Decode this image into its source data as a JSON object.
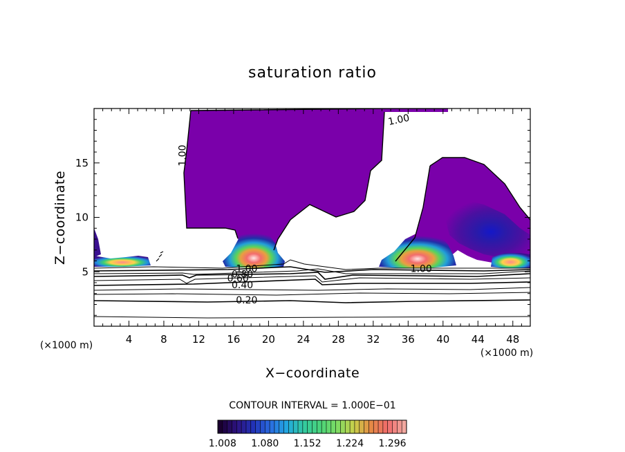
{
  "chart_data": {
    "type": "heatmap",
    "title": "saturation ratio",
    "xlabel": "X−coordinate",
    "ylabel": "Z−coordinate",
    "x_unit": "(×1000 m)",
    "y_unit": "(×1000 m)",
    "xlim": [
      0,
      50
    ],
    "ylim": [
      0,
      20
    ],
    "x_ticks": [
      4,
      8,
      12,
      16,
      20,
      24,
      28,
      32,
      36,
      40,
      44,
      48
    ],
    "x_tick_labels": [
      "4",
      "8",
      "12",
      "16",
      "20",
      "24",
      "28",
      "32",
      "36",
      "40",
      "44",
      "48"
    ],
    "y_ticks": [
      5,
      10,
      15
    ],
    "y_tick_labels": [
      "5",
      "10",
      "15"
    ],
    "contour_interval_text": "CONTOUR INTERVAL = 1.000E−01",
    "contour_labels": [
      {
        "text": "1.00",
        "x": 10.5,
        "y": 16
      },
      {
        "text": "1.00",
        "x": 35.0,
        "y": 19.0
      },
      {
        "text": "1.00",
        "x": 17.5,
        "y": 5.3
      },
      {
        "text": "1.00",
        "x": 37.5,
        "y": 5.3
      },
      {
        "text": "0.80",
        "x": 17.0,
        "y": 4.8
      },
      {
        "text": "0.60",
        "x": 16.5,
        "y": 4.4
      },
      {
        "text": "0.40",
        "x": 17.0,
        "y": 3.8
      },
      {
        "text": "0.20",
        "x": 17.5,
        "y": 2.4
      }
    ],
    "colorbar": {
      "tick_labels": [
        "1.008",
        "1.080",
        "1.152",
        "1.224",
        "1.296"
      ],
      "min": 1.0,
      "max": 1.32,
      "levels": 40,
      "colors": [
        "#1a0030",
        "#2d1380",
        "#2233b8",
        "#2a6ce0",
        "#22a8e0",
        "#33c9a0",
        "#4ad47a",
        "#7edc63",
        "#c9d04a",
        "#e58a45",
        "#f06b6b",
        "#f2a8a0"
      ]
    }
  }
}
